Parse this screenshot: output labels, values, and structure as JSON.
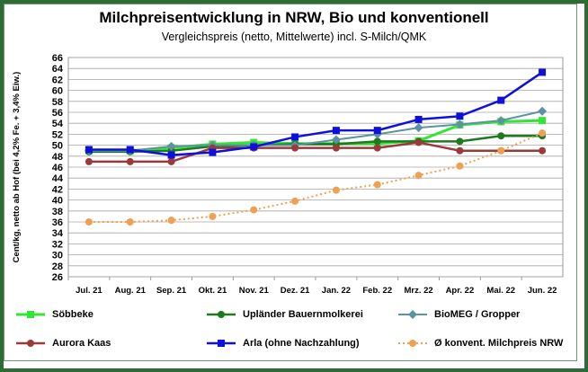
{
  "chart_data": {
    "type": "line",
    "title": "Milchpreisentwicklung in NRW, Bio und konventionell",
    "subtitle": "Vergleichspreis  (netto, Mittelwerte) incl. S-Milch/QMK",
    "ylabel": "Cent/kg, netto ab Hof (bei 4,2% Fe. + 3,4% Eiw.)",
    "xlabel": "",
    "ylim": [
      26,
      66
    ],
    "yticks": [
      26,
      28,
      30,
      32,
      34,
      36,
      38,
      40,
      42,
      44,
      46,
      48,
      50,
      52,
      54,
      56,
      58,
      60,
      62,
      64,
      66
    ],
    "grid": true,
    "legend_position": "bottom",
    "categories": [
      "Jul. 21",
      "Aug. 21",
      "Sep. 21",
      "Okt. 21",
      "Nov. 21",
      "Dez. 21",
      "Jan. 22",
      "Feb. 22",
      "Mrz. 22",
      "Apr. 22",
      "Mai. 22",
      "Jun. 22"
    ],
    "series": [
      {
        "name": "Söbbeke",
        "color": "#33e633",
        "marker": "square",
        "dash": false,
        "width": 3,
        "values": [
          49.0,
          49.0,
          49.5,
          50.2,
          50.5,
          50.3,
          50.3,
          50.3,
          50.8,
          53.7,
          54.3,
          54.5
        ]
      },
      {
        "name": "Upländer Bauernmolkerei",
        "color": "#1d7a1d",
        "marker": "circle",
        "dash": false,
        "width": 2.5,
        "values": [
          48.8,
          48.8,
          49.0,
          49.8,
          50.0,
          50.2,
          50.2,
          50.7,
          50.7,
          50.7,
          51.7,
          51.7
        ]
      },
      {
        "name": "BioMEG / Gropper",
        "color": "#5b93a3",
        "marker": "diamond",
        "dash": false,
        "width": 2,
        "values": [
          49.0,
          49.0,
          49.8,
          50.0,
          50.0,
          50.0,
          51.0,
          52.0,
          53.2,
          53.8,
          54.5,
          56.2
        ]
      },
      {
        "name": "Aurora Kaas",
        "color": "#9b3a3a",
        "marker": "circle",
        "dash": false,
        "width": 2.5,
        "values": [
          47.0,
          47.0,
          47.0,
          49.5,
          49.5,
          49.5,
          49.5,
          49.5,
          50.5,
          49.0,
          49.0,
          49.0
        ]
      },
      {
        "name": "Arla (ohne Nachzahlung)",
        "color": "#1010dd",
        "marker": "square",
        "dash": false,
        "width": 2.5,
        "values": [
          49.2,
          49.2,
          48.2,
          48.7,
          49.7,
          51.5,
          52.7,
          52.7,
          54.7,
          55.3,
          58.2,
          63.3
        ]
      },
      {
        "name": "Ø konvent. Milchpreis NRW",
        "color": "#f0a050",
        "marker": "circle",
        "dash": true,
        "width": 2,
        "values": [
          36.0,
          36.0,
          36.3,
          37.0,
          38.2,
          39.8,
          41.8,
          42.8,
          44.5,
          46.2,
          49.0,
          52.2
        ]
      }
    ]
  }
}
